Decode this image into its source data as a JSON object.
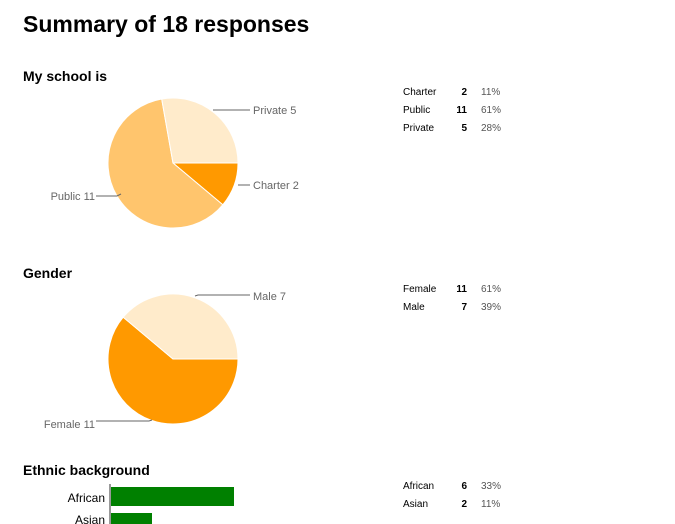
{
  "page": {
    "title": "Summary of 18 responses"
  },
  "sections": [
    {
      "title": "My school is",
      "rows": [
        {
          "label": "Charter",
          "count": "2",
          "percent": "11%"
        },
        {
          "label": "Public",
          "count": "11",
          "percent": "61%"
        },
        {
          "label": "Private",
          "count": "5",
          "percent": "28%"
        }
      ]
    },
    {
      "title": "Gender",
      "rows": [
        {
          "label": "Female",
          "count": "11",
          "percent": "61%"
        },
        {
          "label": "Male",
          "count": "7",
          "percent": "39%"
        }
      ]
    },
    {
      "title": "Ethnic background",
      "rows": [
        {
          "label": "African",
          "count": "6",
          "percent": "33%"
        },
        {
          "label": "Asian",
          "count": "2",
          "percent": "11%"
        }
      ]
    }
  ],
  "chart_data": [
    {
      "type": "pie",
      "title": "My school is",
      "categories": [
        "Charter",
        "Public",
        "Private"
      ],
      "values": [
        2,
        11,
        5
      ],
      "slice_labels": [
        "Charter  2",
        "Public  11",
        "Private  5"
      ],
      "colors": [
        "#ff9900",
        "#ffc56d",
        "#ffebcb"
      ]
    },
    {
      "type": "pie",
      "title": "Gender",
      "categories": [
        "Female",
        "Male"
      ],
      "values": [
        11,
        7
      ],
      "slice_labels": [
        "Female  11",
        "Male  7"
      ],
      "colors": [
        "#ff9900",
        "#ffebcb"
      ]
    },
    {
      "type": "bar",
      "orientation": "horizontal",
      "title": "Ethnic background",
      "categories": [
        "African",
        "Asian"
      ],
      "values": [
        6,
        2
      ],
      "category_labels": [
        "African",
        "Asian"
      ],
      "colors": [
        "#008000"
      ]
    }
  ]
}
